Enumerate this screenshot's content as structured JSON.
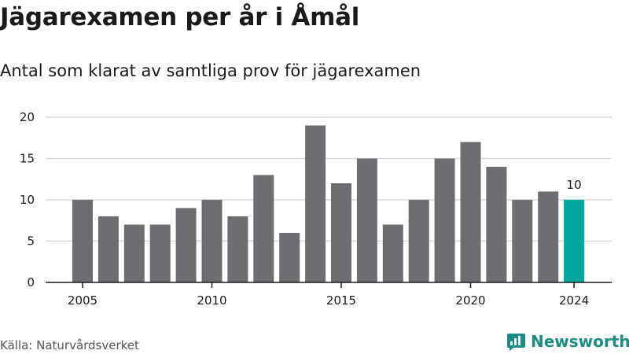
{
  "title": "Jägarexamen per år i Åmål",
  "subtitle": "Antal som klarat av samtliga prov för jägarexamen",
  "source": "Källa: Naturvårdsverket",
  "brand": {
    "name": "Newsworthy",
    "color": "#1b8b84",
    "icon": "bar-chart-icon"
  },
  "colors": {
    "bar": "#6e6d72",
    "highlight": "#00a59b",
    "grid": "#d9d9d9",
    "axis": "#1a1a1a"
  },
  "chart_data": {
    "type": "bar",
    "x": [
      2005,
      2006,
      2007,
      2008,
      2009,
      2010,
      2011,
      2012,
      2013,
      2014,
      2015,
      2016,
      2017,
      2018,
      2019,
      2020,
      2021,
      2022,
      2023,
      2024
    ],
    "values": [
      10,
      8,
      7,
      7,
      9,
      10,
      8,
      13,
      6,
      19,
      12,
      15,
      7,
      10,
      15,
      17,
      14,
      10,
      11,
      10
    ],
    "xticks": [
      "2005",
      "2010",
      "2015",
      "2020",
      "2024"
    ],
    "yticks": [
      "0",
      "5",
      "10",
      "15",
      "20"
    ],
    "ylim": [
      0,
      20
    ],
    "highlight_index": 19,
    "data_labels": [
      {
        "index": 19,
        "text": "10"
      }
    ],
    "xlabel": "",
    "ylabel": "",
    "grid": true
  }
}
